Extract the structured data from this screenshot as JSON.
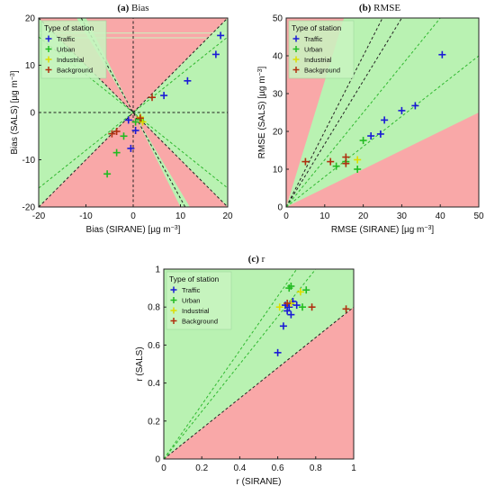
{
  "chart_data": [
    {
      "type": "scatter",
      "title": "(a) Bias",
      "xlabel": "Bias (SIRANE) [µg m⁻³]",
      "ylabel": "Bias (SALS) [µg m⁻³]",
      "xlim": [
        -20,
        20
      ],
      "ylim": [
        -20,
        20
      ],
      "xticks": [
        "-20",
        "-10",
        "0",
        "10",
        "20"
      ],
      "yticks": [
        "-20",
        "-10",
        "0",
        "10",
        "20"
      ],
      "legend_title": "Type of station",
      "legend_position": "top-left",
      "series": [
        {
          "name": "Traffic",
          "color": "#1a1ad6",
          "points": [
            [
              18.5,
              16.3
            ],
            [
              17.5,
              12.3
            ],
            [
              11.5,
              6.7
            ],
            [
              6.5,
              3.6
            ],
            [
              0.5,
              -3.8
            ],
            [
              -0.5,
              -7.6
            ],
            [
              -1,
              -1.6
            ]
          ]
        },
        {
          "name": "Urban",
          "color": "#22bb22",
          "points": [
            [
              1.5,
              -1.5
            ],
            [
              0.5,
              -2
            ],
            [
              -5.5,
              -13
            ],
            [
              -3.5,
              -8.5
            ],
            [
              -2,
              -5
            ]
          ]
        },
        {
          "name": "Industrial",
          "color": "#dddd00",
          "points": [
            [
              1.5,
              -1
            ],
            [
              2,
              -2
            ]
          ]
        },
        {
          "name": "Background",
          "color": "#b03010",
          "points": [
            [
              4,
              3.2
            ],
            [
              1.5,
              -1.2
            ],
            [
              -4.5,
              -4.5
            ],
            [
              -3.5,
              -4
            ]
          ]
        }
      ]
    },
    {
      "type": "scatter",
      "title": "(b) RMSE",
      "xlabel": "RMSE (SIRANE) [µg m⁻³]",
      "ylabel": "RMSE (SALS) [µg m⁻³]",
      "xlim": [
        0,
        50
      ],
      "ylim": [
        0,
        50
      ],
      "xticks": [
        "0",
        "10",
        "20",
        "30",
        "40",
        "50"
      ],
      "yticks": [
        "0",
        "10",
        "20",
        "30",
        "40",
        "50"
      ],
      "legend_title": "Type of station",
      "legend_position": "top-left",
      "series": [
        {
          "name": "Traffic",
          "color": "#1a1ad6",
          "points": [
            [
              40.5,
              40.3
            ],
            [
              33.5,
              26.8
            ],
            [
              30,
              25.5
            ],
            [
              25.5,
              23
            ],
            [
              24.5,
              19.3
            ],
            [
              22,
              18.8
            ]
          ]
        },
        {
          "name": "Urban",
          "color": "#22bb22",
          "points": [
            [
              20,
              17.6
            ],
            [
              18.5,
              10
            ],
            [
              13,
              10.8
            ],
            [
              15.5,
              12
            ]
          ]
        },
        {
          "name": "Industrial",
          "color": "#dddd00",
          "points": [
            [
              18.5,
              12.5
            ]
          ]
        },
        {
          "name": "Background",
          "color": "#b03010",
          "points": [
            [
              5,
              12
            ],
            [
              11.5,
              12
            ],
            [
              15.5,
              13.2
            ],
            [
              15.5,
              11.5
            ]
          ]
        }
      ]
    },
    {
      "type": "scatter",
      "title": "(c) r",
      "xlabel": "r (SIRANE)",
      "ylabel": "r (SALS)",
      "xlim": [
        0,
        1
      ],
      "ylim": [
        0,
        1
      ],
      "xticks": [
        "0",
        "0.2",
        "0.4",
        "0.6",
        "0.8",
        "1"
      ],
      "yticks": [
        "0",
        "0.2",
        "0.4",
        "0.6",
        "0.8",
        "1"
      ],
      "legend_title": "Type of station",
      "legend_position": "top-left",
      "series": [
        {
          "name": "Traffic",
          "color": "#1a1ad6",
          "points": [
            [
              0.6,
              0.56
            ],
            [
              0.63,
              0.7
            ],
            [
              0.64,
              0.81
            ],
            [
              0.65,
              0.78
            ],
            [
              0.66,
              0.8
            ],
            [
              0.68,
              0.83
            ],
            [
              0.7,
              0.81
            ],
            [
              0.67,
              0.76
            ]
          ]
        },
        {
          "name": "Urban",
          "color": "#22bb22",
          "points": [
            [
              0.66,
              0.9
            ],
            [
              0.67,
              0.91
            ],
            [
              0.75,
              0.89
            ],
            [
              0.73,
              0.8
            ]
          ]
        },
        {
          "name": "Industrial",
          "color": "#dddd00",
          "points": [
            [
              0.61,
              0.8
            ],
            [
              0.72,
              0.88
            ],
            [
              0.67,
              0.82
            ]
          ]
        },
        {
          "name": "Background",
          "color": "#b03010",
          "points": [
            [
              0.78,
              0.8
            ],
            [
              0.96,
              0.79
            ],
            [
              0.65,
              0.82
            ]
          ]
        }
      ]
    }
  ]
}
